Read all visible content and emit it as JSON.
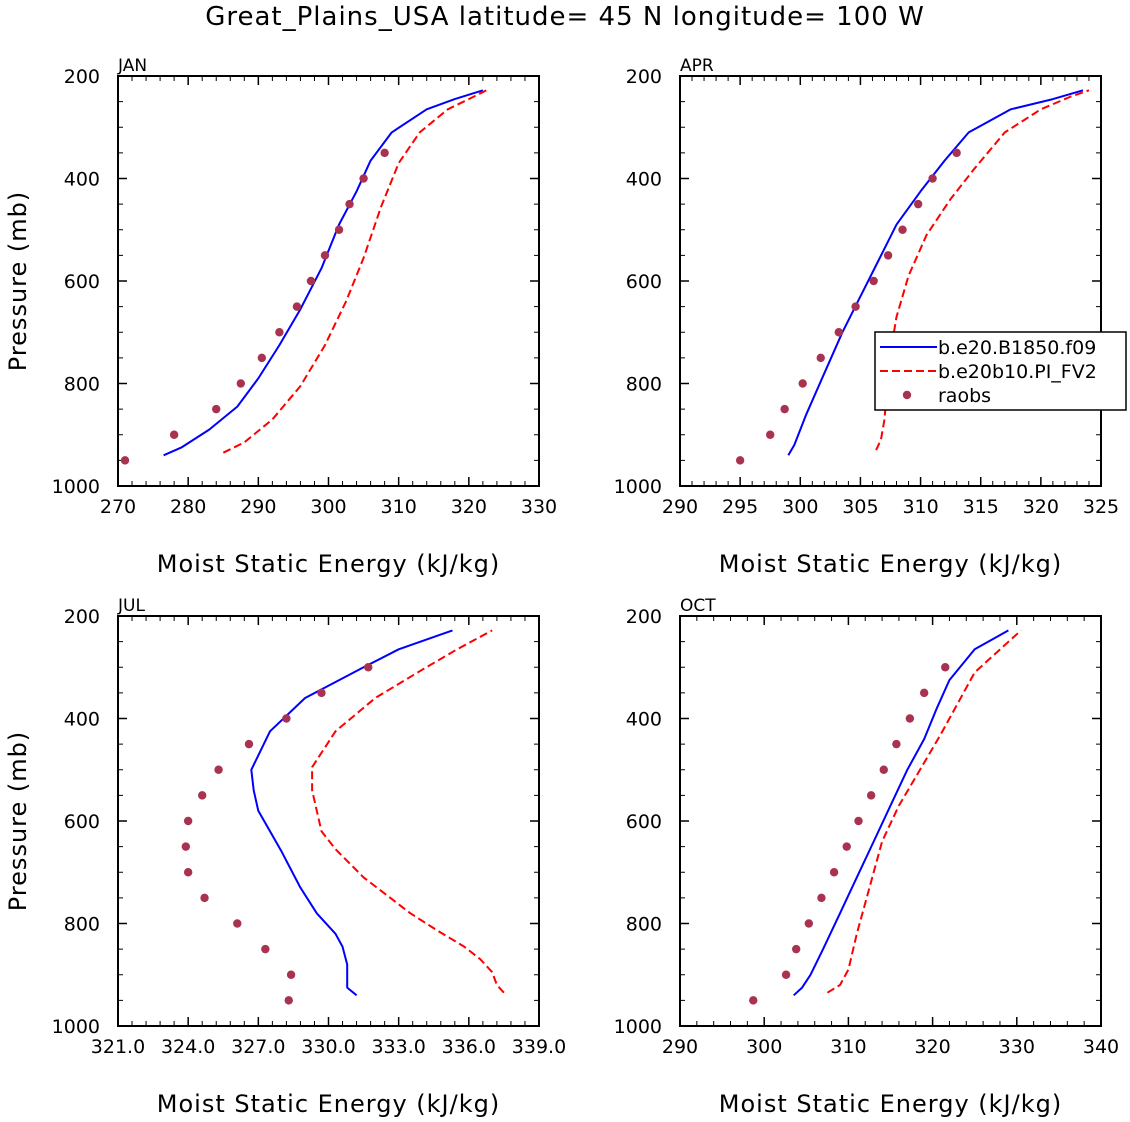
{
  "title": "Great_Plains_USA  latitude= 45 N longitude= 100 W",
  "legend": {
    "entries": [
      {
        "label": "b.e20.B1850.f09",
        "style": "solid",
        "color": "#0000ff"
      },
      {
        "label": "b.e20b10.PI_FV2",
        "style": "dashed",
        "color": "#ff0000"
      },
      {
        "label": "raobs",
        "style": "dots",
        "color": "#a83250"
      }
    ]
  },
  "colors": {
    "model1": "#0000ff",
    "model2": "#ff0000",
    "raobs": "#a83250"
  },
  "chart_data": [
    {
      "type": "line",
      "panel": "JAN",
      "xlabel": "Moist Static Energy (kJ/kg)",
      "ylabel": "Pressure (mb)",
      "xlim": [
        270,
        330
      ],
      "xticks": [
        270,
        280,
        290,
        300,
        310,
        320,
        330
      ],
      "xtick_labels": [
        "270",
        "280",
        "290",
        "300",
        "310",
        "320",
        "330"
      ],
      "ylim": [
        200,
        1000
      ],
      "yticks": [
        200,
        400,
        600,
        800,
        1000
      ],
      "ytick_labels": [
        "200",
        "400",
        "600",
        "800",
        "1000"
      ],
      "series": [
        {
          "name": "b.e20.B1850.f09",
          "x": [
            276.5,
            279,
            283,
            287,
            290,
            293,
            296,
            299,
            301.5,
            304,
            306,
            309,
            314,
            318,
            322
          ],
          "y": [
            940,
            925,
            890,
            845,
            790,
            725,
            655,
            575,
            490,
            425,
            365,
            310,
            265,
            245,
            228
          ]
        },
        {
          "name": "b.e20b10.PI_FV2",
          "x": [
            285,
            288,
            292,
            296,
            299.5,
            302.5,
            305,
            307.5,
            310,
            313,
            317,
            320,
            322.5
          ],
          "y": [
            935,
            915,
            870,
            805,
            725,
            640,
            555,
            455,
            370,
            310,
            265,
            245,
            228
          ]
        },
        {
          "name": "raobs",
          "x": [
            271,
            278,
            284,
            287.5,
            290.5,
            293,
            295.5,
            297.5,
            299.5,
            301.5,
            303,
            305,
            308
          ],
          "y": [
            950,
            900,
            850,
            800,
            750,
            700,
            650,
            600,
            550,
            500,
            450,
            400,
            350
          ]
        }
      ]
    },
    {
      "type": "line",
      "panel": "APR",
      "xlabel": "Moist Static Energy (kJ/kg)",
      "ylabel": "",
      "xlim": [
        290,
        325
      ],
      "xticks": [
        290,
        295,
        300,
        305,
        310,
        315,
        320,
        325
      ],
      "xtick_labels": [
        "290",
        "295",
        "300",
        "305",
        "310",
        "315",
        "320",
        "325"
      ],
      "ylim": [
        200,
        1000
      ],
      "yticks": [
        200,
        400,
        600,
        800,
        1000
      ],
      "ytick_labels": [
        "200",
        "400",
        "600",
        "800",
        "1000"
      ],
      "series": [
        {
          "name": "b.e20.B1850.f09",
          "x": [
            299,
            299.5,
            300.5,
            302,
            303.5,
            305,
            306.5,
            308,
            310,
            312,
            314,
            317.5,
            321,
            323.5
          ],
          "y": [
            940,
            920,
            860,
            780,
            700,
            630,
            560,
            490,
            425,
            365,
            310,
            265,
            245,
            228
          ]
        },
        {
          "name": "b.e20b10.PI_FV2",
          "x": [
            306.3,
            306.7,
            307,
            307.2,
            307.5,
            308,
            309,
            310.5,
            312.5,
            314.5,
            317,
            320,
            322.5,
            324
          ],
          "y": [
            930,
            910,
            870,
            810,
            740,
            670,
            590,
            510,
            440,
            380,
            310,
            265,
            240,
            228
          ]
        },
        {
          "name": "raobs",
          "x": [
            295,
            297.5,
            298.7,
            300.2,
            301.7,
            303.2,
            304.6,
            306.1,
            307.3,
            308.5,
            309.8,
            311,
            313
          ],
          "y": [
            950,
            900,
            850,
            800,
            750,
            700,
            650,
            600,
            550,
            500,
            450,
            400,
            350
          ]
        }
      ]
    },
    {
      "type": "line",
      "panel": "JUL",
      "xlabel": "Moist Static Energy (kJ/kg)",
      "ylabel": "Pressure (mb)",
      "xlim": [
        321.0,
        339.0
      ],
      "xticks": [
        321,
        324,
        327,
        330,
        333,
        336,
        339
      ],
      "xtick_labels": [
        "321.0",
        "324.0",
        "327.0",
        "330.0",
        "333.0",
        "336.0",
        "339.0"
      ],
      "ylim": [
        200,
        1000
      ],
      "yticks": [
        200,
        400,
        600,
        800,
        1000
      ],
      "ytick_labels": [
        "200",
        "400",
        "600",
        "800",
        "1000"
      ],
      "series": [
        {
          "name": "b.e20.B1850.f09",
          "x": [
            331.2,
            330.8,
            330.8,
            330.6,
            330.3,
            329.5,
            328.8,
            328,
            327,
            326.8,
            326.7,
            327.5,
            329,
            331.5,
            333,
            335.3
          ],
          "y": [
            940,
            925,
            880,
            845,
            820,
            780,
            730,
            660,
            580,
            540,
            500,
            425,
            360,
            300,
            265,
            228
          ]
        },
        {
          "name": "b.e20b10.PI_FV2",
          "x": [
            337.5,
            337.2,
            337,
            336.5,
            335.8,
            334.7,
            333.5,
            331.5,
            330.3,
            329.7,
            329.5,
            329.3,
            329.3,
            330.3,
            332,
            334,
            335.5,
            337
          ],
          "y": [
            935,
            920,
            895,
            870,
            845,
            815,
            780,
            710,
            655,
            620,
            580,
            540,
            495,
            425,
            360,
            305,
            265,
            228
          ]
        },
        {
          "name": "raobs",
          "x": [
            328.3,
            328.4,
            327.3,
            326.1,
            324.7,
            324.0,
            323.9,
            324.0,
            324.6,
            325.3,
            326.6,
            328.2,
            329.7,
            331.7
          ],
          "y": [
            950,
            900,
            850,
            800,
            750,
            700,
            650,
            600,
            550,
            500,
            450,
            400,
            350,
            300
          ]
        }
      ]
    },
    {
      "type": "line",
      "panel": "OCT",
      "xlabel": "Moist Static Energy (kJ/kg)",
      "ylabel": "",
      "xlim": [
        290,
        340
      ],
      "xticks": [
        290,
        300,
        310,
        320,
        330,
        340
      ],
      "xtick_labels": [
        "290",
        "300",
        "310",
        "320",
        "330",
        "340"
      ],
      "ylim": [
        200,
        1000
      ],
      "yticks": [
        200,
        400,
        600,
        800,
        1000
      ],
      "ytick_labels": [
        "200",
        "400",
        "600",
        "800",
        "1000"
      ],
      "series": [
        {
          "name": "b.e20.B1850.f09",
          "x": [
            303.5,
            304.5,
            305.5,
            307,
            309,
            311,
            313,
            315,
            317,
            319,
            320.5,
            322,
            325,
            329
          ],
          "y": [
            940,
            925,
            900,
            850,
            780,
            710,
            640,
            570,
            500,
            440,
            380,
            325,
            265,
            228
          ]
        },
        {
          "name": "b.e20b10.PI_FV2",
          "x": [
            307.5,
            309,
            310,
            311,
            312.5,
            314,
            316,
            318.5,
            321,
            323,
            325,
            330.5
          ],
          "y": [
            935,
            920,
            890,
            820,
            730,
            640,
            570,
            500,
            430,
            370,
            310,
            228
          ]
        },
        {
          "name": "raobs",
          "x": [
            298.7,
            302.6,
            303.8,
            305.3,
            306.8,
            308.3,
            309.8,
            311.2,
            312.7,
            314.2,
            315.7,
            317.3,
            319,
            321.5
          ],
          "y": [
            950,
            900,
            850,
            800,
            750,
            700,
            650,
            600,
            550,
            500,
            450,
            400,
            350,
            300
          ]
        }
      ]
    }
  ]
}
